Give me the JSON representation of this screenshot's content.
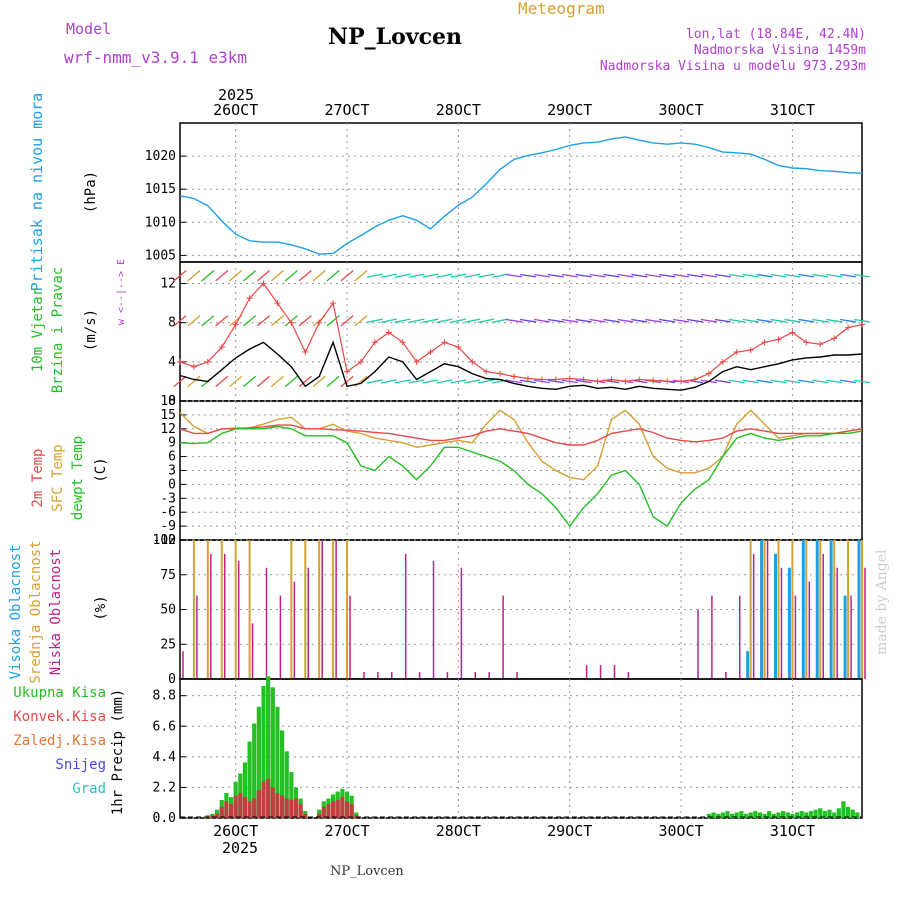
{
  "header": {
    "model_label": "Model",
    "model_name": "wrf-nmm_v3.9.1  e3km",
    "title": "NP_Lovcen",
    "meteogram_label": "Meteogram",
    "lonlat": "lon,lat (18.84E, 42.4N)",
    "elevation": "Nadmorska Visina 1459m",
    "model_elevation": "Nadmorska Visina u modelu 973.293m",
    "footer_title": "NP_Lovcen",
    "watermark": "made by Angel",
    "year_top": "2025",
    "year_bottom": "2025"
  },
  "colors": {
    "pressure": "#1ea0e6",
    "t2m": "#e84848",
    "sfc": "#d8a030",
    "dewp": "#22c022",
    "high_cloud": "#1ea0e6",
    "mid_cloud": "#d8a030",
    "low_cloud": "#c0208c",
    "total_precip": "#22c022",
    "conv_precip": "#c04040",
    "snow": "#4848e0",
    "grad": "#30c0c0",
    "purple": "#b040d0"
  },
  "chart_data": [
    {
      "type": "line",
      "title": "Pritisak na nivou mora",
      "ylabel": "Pritisak na nivou mora",
      "units": "(hPa)",
      "x_tick_labels": [
        "26OCT",
        "27OCT",
        "28OCT",
        "29OCT",
        "30OCT",
        "31OCT"
      ],
      "x_tick_hours": [
        12,
        36,
        60,
        84,
        108,
        132
      ],
      "ylim": [
        1004,
        1025
      ],
      "y_ticks": [
        1005,
        1010,
        1015,
        1020
      ],
      "x_hours": [
        0,
        3,
        6,
        9,
        12,
        15,
        18,
        21,
        24,
        27,
        30,
        33,
        36,
        39,
        42,
        45,
        48,
        51,
        54,
        57,
        60,
        63,
        66,
        69,
        72,
        75,
        78,
        81,
        84,
        87,
        90,
        93,
        96,
        99,
        102,
        105,
        108,
        111,
        114,
        117,
        120,
        123,
        126,
        129,
        132,
        135,
        138,
        141,
        144,
        147
      ],
      "values": [
        1014,
        1013.6,
        1012.5,
        1010.2,
        1008.2,
        1007.2,
        1007,
        1007,
        1006.6,
        1006,
        1005.2,
        1005.3,
        1006.8,
        1008,
        1009.3,
        1010.3,
        1011,
        1010.3,
        1009,
        1010.9,
        1012.6,
        1013.8,
        1015.8,
        1018,
        1019.5,
        1020.1,
        1020.5,
        1021,
        1021.6,
        1022,
        1022.1,
        1022.6,
        1022.9,
        1022.4,
        1022,
        1021.8,
        1022,
        1021.8,
        1021.3,
        1020.6,
        1020.5,
        1020.3,
        1019.5,
        1018.6,
        1018.2,
        1018.1,
        1017.8,
        1017.7,
        1017.5,
        1017.4
      ]
    },
    {
      "type": "line",
      "title": "10m Vjetar Brzina i Pravac",
      "ylabel": "10m Vjetar Brzina i Pravac",
      "units": "(m/s)",
      "direction_legend": [
        "w",
        "<--|-->",
        "E"
      ],
      "ylim": [
        0,
        14.2
      ],
      "y_ticks": [
        0,
        4,
        8,
        12
      ],
      "x_hours": [
        0,
        3,
        6,
        9,
        12,
        15,
        18,
        21,
        24,
        27,
        30,
        33,
        36,
        39,
        42,
        45,
        48,
        51,
        54,
        57,
        60,
        63,
        66,
        69,
        72,
        75,
        78,
        81,
        84,
        87,
        90,
        93,
        96,
        99,
        102,
        105,
        108,
        111,
        114,
        117,
        120,
        123,
        126,
        129,
        132,
        135,
        138,
        141,
        144,
        147
      ],
      "series": [
        {
          "name": "wind speed",
          "values": [
            2.6,
            2.2,
            2,
            3.2,
            4.4,
            5.3,
            6,
            4.8,
            3.5,
            1.5,
            2.5,
            6,
            1.5,
            1.8,
            3,
            4.5,
            4,
            2.2,
            3,
            3.8,
            3.5,
            2.8,
            2.3,
            2.2,
            1.8,
            1.5,
            1.3,
            1.2,
            1.5,
            1.6,
            1.3,
            1.4,
            1.2,
            1.5,
            1.3,
            1.2,
            1.1,
            1.4,
            2,
            3,
            3.5,
            3.2,
            3.5,
            3.8,
            4.2,
            4.4,
            4.5,
            4.7,
            4.7,
            4.8
          ]
        },
        {
          "name": "wind gust",
          "values": [
            4,
            3.5,
            4,
            5.5,
            7.8,
            10.5,
            12,
            10,
            8,
            5,
            8,
            10,
            3,
            4,
            6,
            7,
            6,
            4,
            5,
            6,
            5.5,
            4,
            3,
            2.8,
            2.5,
            2.3,
            2.2,
            2.2,
            2.3,
            2.2,
            2.0,
            2.2,
            2.0,
            2.2,
            2.1,
            2.0,
            2.0,
            2.2,
            2.8,
            4,
            5,
            5.2,
            6,
            6.3,
            7,
            6,
            5.8,
            6.4,
            7.5,
            7.8
          ]
        }
      ]
    },
    {
      "type": "line",
      "title": "2m Temp / SFC Temp / dewpt Temp",
      "series_labels": [
        "2m Temp",
        "SFC Temp",
        "dewpt Temp"
      ],
      "units": "(C)",
      "ylim": [
        -12,
        18
      ],
      "y_ticks": [
        -12,
        -9,
        -6,
        -3,
        0,
        3,
        6,
        9,
        12,
        15,
        18
      ],
      "x_hours": [
        0,
        3,
        6,
        9,
        12,
        15,
        18,
        21,
        24,
        27,
        30,
        33,
        36,
        39,
        42,
        45,
        48,
        51,
        54,
        57,
        60,
        63,
        66,
        69,
        72,
        75,
        78,
        81,
        84,
        87,
        90,
        93,
        96,
        99,
        102,
        105,
        108,
        111,
        114,
        117,
        120,
        123,
        126,
        129,
        132,
        135,
        138,
        141,
        144,
        147
      ],
      "series": [
        {
          "name": "2m Temp",
          "values": [
            12,
            11,
            11,
            12,
            12,
            12.2,
            12.4,
            12.8,
            12.8,
            12,
            12,
            11.8,
            11.7,
            11.5,
            11.2,
            11,
            10.5,
            10,
            9.5,
            9.5,
            10,
            10.5,
            11.5,
            12,
            11.5,
            11,
            10,
            9,
            8.5,
            8.5,
            9.5,
            11,
            11.5,
            12,
            11.2,
            10,
            9.5,
            9.2,
            9.5,
            10,
            11.5,
            12,
            11.5,
            11,
            11,
            11,
            11,
            11,
            11.5,
            12
          ]
        },
        {
          "name": "SFC Temp",
          "values": [
            15.5,
            12.5,
            11,
            12,
            12.2,
            12.2,
            13,
            14,
            14.5,
            12,
            12,
            13,
            11.5,
            11,
            10,
            9.5,
            9,
            8,
            8.5,
            9,
            9.5,
            9,
            13,
            16,
            14,
            9,
            5,
            3,
            1.5,
            1,
            4,
            14,
            16,
            13,
            6,
            3.5,
            2.5,
            2.5,
            3.5,
            6,
            13,
            16,
            13,
            10,
            10.5,
            11,
            11,
            11,
            11.5,
            12
          ]
        },
        {
          "name": "dewpt Temp",
          "values": [
            9,
            8.8,
            9,
            11,
            12,
            12,
            12,
            12.5,
            12,
            10.5,
            10.5,
            10.5,
            9,
            4,
            3,
            6,
            4,
            1,
            4,
            8,
            8,
            7,
            6,
            5,
            3,
            0,
            -2,
            -5,
            -9,
            -5,
            -2,
            2,
            3,
            0,
            -7,
            -9,
            -4,
            -1,
            1,
            6,
            10,
            11,
            10,
            9.5,
            10,
            10.5,
            10.5,
            11,
            11,
            11.5
          ]
        }
      ]
    },
    {
      "type": "bar",
      "title": "Oblacnost",
      "series_labels": [
        "Visoka Oblacnost",
        "Srednja Oblacnost",
        "Niska Oblacnost"
      ],
      "units": "(%)",
      "ylim": [
        0,
        100
      ],
      "y_ticks": [
        0,
        25,
        50,
        75,
        100
      ],
      "x_hours": [
        0,
        3,
        6,
        9,
        12,
        15,
        18,
        21,
        24,
        27,
        30,
        33,
        36,
        39,
        42,
        45,
        48,
        51,
        54,
        57,
        60,
        63,
        66,
        69,
        72,
        75,
        78,
        81,
        84,
        87,
        90,
        93,
        96,
        99,
        102,
        105,
        108,
        111,
        114,
        117,
        120,
        123,
        126,
        129,
        132,
        135,
        138,
        141,
        144,
        147
      ],
      "series": [
        {
          "name": "Visoka Oblacnost",
          "values": [
            0,
            0,
            0,
            0,
            0,
            0,
            0,
            0,
            0,
            0,
            0,
            0,
            0,
            0,
            0,
            0,
            0,
            0,
            0,
            0,
            0,
            0,
            0,
            0,
            0,
            0,
            0,
            0,
            0,
            0,
            0,
            0,
            0,
            0,
            0,
            0,
            0,
            0,
            0,
            0,
            0,
            20,
            100,
            90,
            80,
            100,
            100,
            100,
            60,
            100
          ]
        },
        {
          "name": "Srednja Oblacnost",
          "values": [
            0,
            100,
            100,
            100,
            100,
            100,
            0,
            0,
            100,
            100,
            100,
            100,
            100,
            0,
            0,
            0,
            0,
            0,
            0,
            0,
            0,
            0,
            0,
            0,
            0,
            0,
            0,
            0,
            0,
            0,
            0,
            0,
            0,
            0,
            0,
            0,
            0,
            0,
            0,
            0,
            0,
            100,
            100,
            100,
            100,
            100,
            100,
            100,
            100,
            100
          ]
        },
        {
          "name": "Niska Oblacnost",
          "values": [
            20,
            60,
            90,
            90,
            85,
            40,
            80,
            60,
            70,
            80,
            100,
            100,
            60,
            5,
            5,
            5,
            90,
            5,
            85,
            5,
            80,
            5,
            5,
            60,
            5,
            0,
            0,
            0,
            0,
            10,
            10,
            10,
            5,
            0,
            0,
            0,
            0,
            50,
            60,
            5,
            60,
            90,
            100,
            80,
            60,
            70,
            90,
            80,
            60,
            80
          ]
        }
      ]
    },
    {
      "type": "bar",
      "title": "1hr Precip",
      "series_labels": [
        "Ukupna Kisa",
        "Konvek.Kisa",
        "Zaledj.Kisa",
        "Snijeg",
        "Grad"
      ],
      "units": "1hr Precip (mm)",
      "ylim": [
        0,
        10
      ],
      "y_ticks": [
        0,
        2.2,
        4.4,
        6.6,
        8.8
      ],
      "x_hours": [
        6,
        7,
        8,
        9,
        10,
        11,
        12,
        13,
        14,
        15,
        16,
        17,
        18,
        19,
        20,
        21,
        22,
        23,
        24,
        25,
        26,
        27,
        30,
        31,
        32,
        33,
        34,
        35,
        36,
        37,
        38,
        114,
        115,
        116,
        117,
        118,
        119,
        120,
        121,
        122,
        123,
        124,
        125,
        126,
        127,
        128,
        129,
        130,
        131,
        132,
        133,
        134,
        135,
        136,
        137,
        138,
        139,
        140,
        141,
        142,
        143,
        144,
        145,
        146
      ],
      "series": [
        {
          "name": "Ukupna Kisa",
          "values": [
            0.2,
            0.3,
            0.6,
            1.3,
            1.8,
            1.5,
            2.6,
            3.2,
            4.0,
            5.5,
            6.8,
            8.0,
            9.5,
            10.2,
            9.4,
            8.0,
            6.3,
            4.8,
            3.3,
            2.2,
            1.4,
            0.5,
            0.6,
            1.2,
            1.4,
            1.7,
            1.9,
            2.1,
            1.9,
            1.6,
            0.4,
            0.3,
            0.4,
            0.3,
            0.4,
            0.5,
            0.3,
            0.4,
            0.5,
            0.3,
            0.4,
            0.5,
            0.4,
            0.3,
            0.5,
            0.3,
            0.4,
            0.5,
            0.4,
            0.3,
            0.4,
            0.5,
            0.4,
            0.5,
            0.6,
            0.7,
            0.5,
            0.6,
            0.4,
            0.7,
            1.2,
            0.8,
            0.6,
            0.4
          ]
        },
        {
          "name": "Konvek.Kisa",
          "values": [
            0.1,
            0.2,
            0.3,
            0.8,
            1.2,
            1.0,
            1.6,
            1.8,
            1.5,
            1.2,
            1.4,
            2.0,
            2.6,
            2.8,
            2.2,
            1.8,
            1.6,
            1.4,
            1.3,
            1.4,
            1.0,
            0.3,
            0.3,
            0.8,
            1.0,
            1.2,
            1.3,
            1.5,
            1.2,
            1.0,
            0.2,
            0,
            0,
            0,
            0,
            0,
            0,
            0,
            0,
            0,
            0,
            0,
            0,
            0,
            0,
            0,
            0,
            0,
            0,
            0,
            0,
            0,
            0,
            0,
            0,
            0,
            0,
            0,
            0,
            0,
            0,
            0,
            0,
            0
          ]
        }
      ]
    }
  ]
}
